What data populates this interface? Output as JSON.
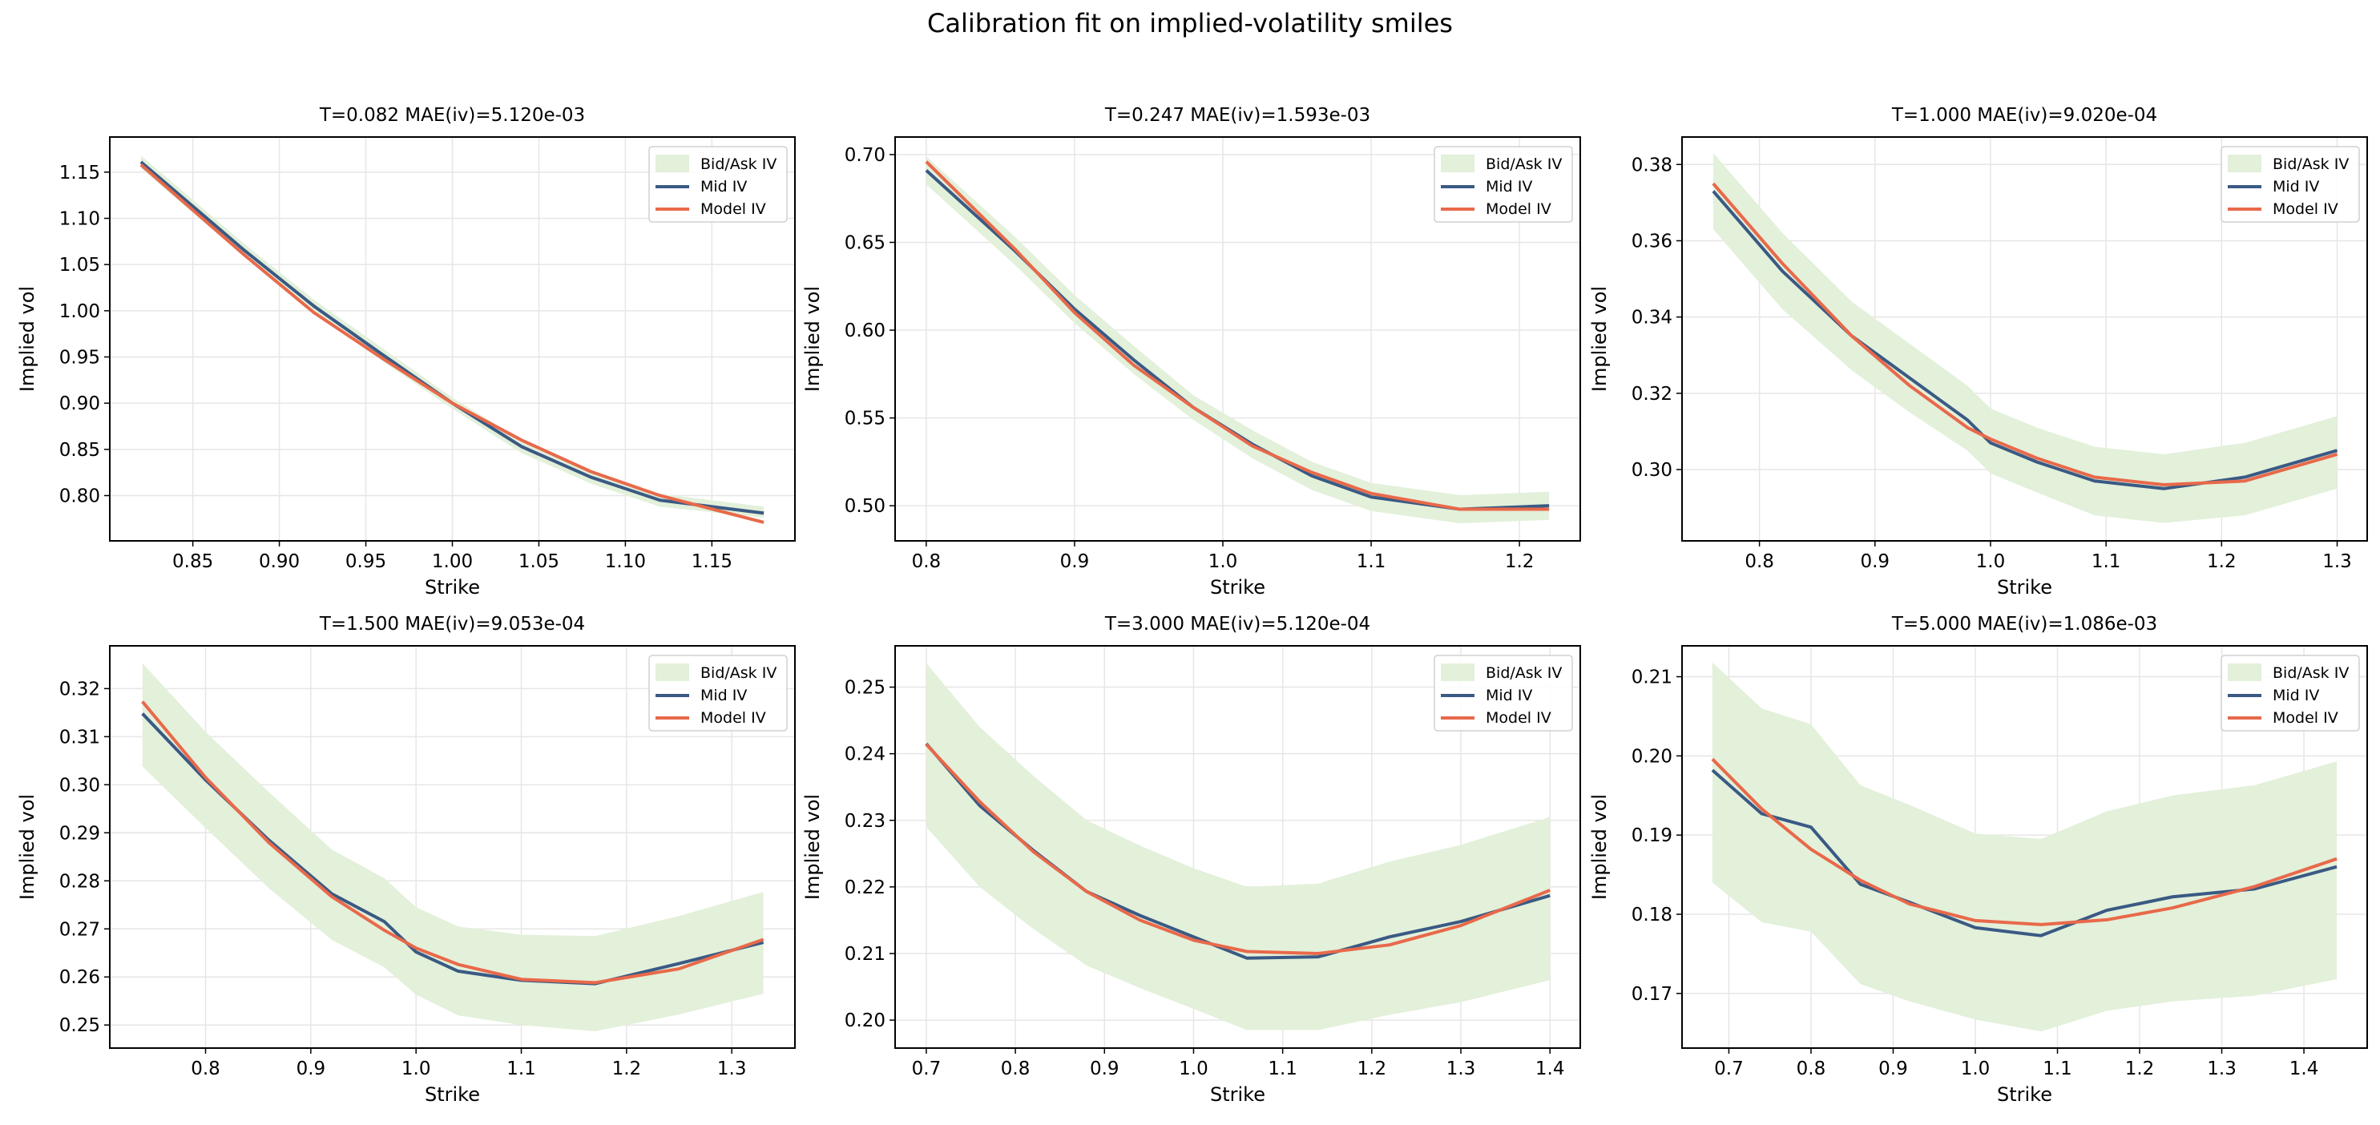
{
  "figure": {
    "suptitle": "Calibration fit on implied-volatility smiles"
  },
  "colors": {
    "bid_ask": "#e3f0da",
    "mid": "#3a5a84",
    "model": "#e8694a",
    "grid": "#e6e6e6"
  },
  "chart_data": [
    {
      "type": "line",
      "title": "T=0.082  MAE(iv)=5.120e-03",
      "xlabel": "Strike",
      "ylabel": "Implied vol",
      "xlim": [
        0.802,
        1.198
      ],
      "ylim": [
        0.751,
        1.188
      ],
      "grid": true,
      "legend": "upper-right",
      "xticks": [
        "0.85",
        "0.90",
        "0.95",
        "1.00",
        "1.05",
        "1.10",
        "1.15"
      ],
      "yticks": [
        "0.80",
        "0.85",
        "0.90",
        "0.95",
        "1.00",
        "1.05",
        "1.10",
        "1.15"
      ],
      "x": [
        0.82,
        0.88,
        0.92,
        0.96,
        1.0,
        1.04,
        1.08,
        1.12,
        1.18
      ],
      "series": [
        {
          "name": "Bid/Ask IV",
          "lower": [
            1.154,
            1.058,
            0.998,
            0.945,
            0.894,
            0.846,
            0.813,
            0.788,
            0.776
          ],
          "upper": [
            1.168,
            1.072,
            1.012,
            0.959,
            0.906,
            0.86,
            0.827,
            0.802,
            0.788
          ]
        },
        {
          "name": "Mid IV",
          "values": [
            1.161,
            1.065,
            1.005,
            0.952,
            0.9,
            0.853,
            0.82,
            0.795,
            0.781
          ]
        },
        {
          "name": "Model IV",
          "values": [
            1.158,
            1.06,
            0.998,
            0.948,
            0.9,
            0.86,
            0.826,
            0.8,
            0.771
          ]
        }
      ]
    },
    {
      "type": "line",
      "title": "T=0.247  MAE(iv)=1.593e-03",
      "xlabel": "Strike",
      "ylabel": "Implied vol",
      "xlim": [
        0.779,
        1.241
      ],
      "ylim": [
        0.48,
        0.71
      ],
      "grid": true,
      "legend": "upper-right",
      "xticks": [
        "0.8",
        "0.9",
        "1.0",
        "1.1",
        "1.2"
      ],
      "yticks": [
        "0.50",
        "0.55",
        "0.60",
        "0.65",
        "0.70"
      ],
      "x": [
        0.8,
        0.86,
        0.9,
        0.94,
        0.98,
        1.02,
        1.06,
        1.1,
        1.16,
        1.22
      ],
      "series": [
        {
          "name": "Bid/Ask IV",
          "lower": [
            0.683,
            0.637,
            0.604,
            0.575,
            0.549,
            0.527,
            0.509,
            0.497,
            0.49,
            0.492
          ],
          "upper": [
            0.699,
            0.653,
            0.62,
            0.591,
            0.563,
            0.543,
            0.525,
            0.513,
            0.506,
            0.508
          ]
        },
        {
          "name": "Mid IV",
          "values": [
            0.691,
            0.645,
            0.612,
            0.583,
            0.556,
            0.535,
            0.517,
            0.505,
            0.498,
            0.5
          ]
        },
        {
          "name": "Model IV",
          "values": [
            0.696,
            0.646,
            0.61,
            0.58,
            0.556,
            0.534,
            0.519,
            0.507,
            0.498,
            0.498
          ]
        }
      ]
    },
    {
      "type": "line",
      "title": "T=1.000  MAE(iv)=9.020e-04",
      "xlabel": "Strike",
      "ylabel": "Implied vol",
      "xlim": [
        0.733,
        1.326
      ],
      "ylim": [
        0.2813,
        0.3872
      ],
      "grid": true,
      "legend": "upper-right",
      "xticks": [
        "0.8",
        "0.9",
        "1.0",
        "1.1",
        "1.2",
        "1.3"
      ],
      "yticks": [
        "0.30",
        "0.32",
        "0.34",
        "0.36",
        "0.38"
      ],
      "x": [
        0.76,
        0.82,
        0.88,
        0.93,
        0.98,
        1.0,
        1.04,
        1.09,
        1.15,
        1.22,
        1.3
      ],
      "series": [
        {
          "name": "Bid/Ask IV",
          "lower": [
            0.363,
            0.342,
            0.326,
            0.315,
            0.305,
            0.299,
            0.294,
            0.288,
            0.286,
            0.288,
            0.295
          ],
          "upper": [
            0.383,
            0.362,
            0.344,
            0.333,
            0.322,
            0.316,
            0.311,
            0.306,
            0.304,
            0.307,
            0.314
          ]
        },
        {
          "name": "Mid IV",
          "values": [
            0.373,
            0.352,
            0.335,
            0.324,
            0.313,
            0.307,
            0.302,
            0.297,
            0.295,
            0.298,
            0.305
          ]
        },
        {
          "name": "Model IV",
          "values": [
            0.375,
            0.354,
            0.335,
            0.322,
            0.311,
            0.308,
            0.303,
            0.298,
            0.296,
            0.297,
            0.304
          ]
        }
      ]
    },
    {
      "type": "line",
      "title": "T=1.500  MAE(iv)=9.053e-04",
      "xlabel": "Strike",
      "ylabel": "Implied vol",
      "xlim": [
        0.709,
        1.36
      ],
      "ylim": [
        0.2452,
        0.3289
      ],
      "grid": true,
      "legend": "upper-right",
      "xticks": [
        "0.8",
        "0.9",
        "1.0",
        "1.1",
        "1.2",
        "1.3"
      ],
      "yticks": [
        "0.25",
        "0.26",
        "0.27",
        "0.28",
        "0.29",
        "0.30",
        "0.31",
        "0.32"
      ],
      "x": [
        0.74,
        0.8,
        0.86,
        0.92,
        0.97,
        1.0,
        1.04,
        1.1,
        1.17,
        1.25,
        1.33
      ],
      "series": [
        {
          "name": "Bid/Ask IV",
          "lower": [
            0.3038,
            0.291,
            0.2785,
            0.2677,
            0.262,
            0.2563,
            0.252,
            0.25,
            0.2487,
            0.2522,
            0.2565
          ],
          "upper": [
            0.3253,
            0.311,
            0.2985,
            0.2865,
            0.2805,
            0.2745,
            0.2705,
            0.2688,
            0.2685,
            0.2727,
            0.2777
          ]
        },
        {
          "name": "Mid IV",
          "values": [
            0.3148,
            0.301,
            0.2885,
            0.2773,
            0.2715,
            0.2652,
            0.2612,
            0.2593,
            0.2586,
            0.2628,
            0.2672
          ]
        },
        {
          "name": "Model IV",
          "values": [
            0.3173,
            0.3015,
            0.288,
            0.2767,
            0.2697,
            0.266,
            0.2626,
            0.2595,
            0.2588,
            0.2617,
            0.2678
          ]
        }
      ]
    },
    {
      "type": "line",
      "title": "T=3.000  MAE(iv)=5.120e-04",
      "xlabel": "Strike",
      "ylabel": "Implied vol",
      "xlim": [
        0.665,
        1.434
      ],
      "ylim": [
        0.1958,
        0.2562
      ],
      "grid": true,
      "legend": "upper-right",
      "xticks": [
        "0.7",
        "0.8",
        "0.9",
        "1.0",
        "1.1",
        "1.2",
        "1.3",
        "1.4"
      ],
      "yticks": [
        "0.20",
        "0.21",
        "0.22",
        "0.23",
        "0.24",
        "0.25"
      ],
      "x": [
        0.7,
        0.76,
        0.82,
        0.88,
        0.94,
        1.0,
        1.06,
        1.14,
        1.22,
        1.3,
        1.4
      ],
      "series": [
        {
          "name": "Bid/Ask IV",
          "lower": [
            0.229,
            0.22,
            0.2137,
            0.2082,
            0.2048,
            0.2017,
            0.1985,
            0.1985,
            0.2008,
            0.2027,
            0.206
          ],
          "upper": [
            0.2536,
            0.244,
            0.2367,
            0.23,
            0.2262,
            0.2228,
            0.22,
            0.2205,
            0.2238,
            0.2263,
            0.2305
          ]
        },
        {
          "name": "Mid IV",
          "values": [
            0.2415,
            0.2322,
            0.2255,
            0.2193,
            0.2157,
            0.2125,
            0.2093,
            0.2095,
            0.2125,
            0.2148,
            0.2187
          ]
        },
        {
          "name": "Model IV",
          "values": [
            0.2414,
            0.2328,
            0.2253,
            0.2193,
            0.215,
            0.212,
            0.2103,
            0.21,
            0.2113,
            0.2142,
            0.2195
          ]
        }
      ]
    },
    {
      "type": "line",
      "title": "T=5.000  MAE(iv)=1.086e-03",
      "xlabel": "Strike",
      "ylabel": "Implied vol",
      "xlim": [
        0.643,
        1.477
      ],
      "ylim": [
        0.1631,
        0.2139
      ],
      "grid": true,
      "legend": "upper-right",
      "xticks": [
        "0.7",
        "0.8",
        "0.9",
        "1.0",
        "1.1",
        "1.2",
        "1.3",
        "1.4"
      ],
      "yticks": [
        "0.17",
        "0.18",
        "0.19",
        "0.20",
        "0.21"
      ],
      "x": [
        0.68,
        0.74,
        0.8,
        0.86,
        0.92,
        1.0,
        1.08,
        1.16,
        1.24,
        1.34,
        1.44
      ],
      "series": [
        {
          "name": "Bid/Ask IV",
          "lower": [
            0.184,
            0.179,
            0.1778,
            0.1712,
            0.169,
            0.1667,
            0.1652,
            0.1678,
            0.169,
            0.1697,
            0.1718
          ],
          "upper": [
            0.2118,
            0.206,
            0.204,
            0.1963,
            0.1938,
            0.1902,
            0.1895,
            0.193,
            0.195,
            0.1963,
            0.1993
          ]
        },
        {
          "name": "Mid IV",
          "values": [
            0.1982,
            0.1927,
            0.191,
            0.1838,
            0.1815,
            0.1783,
            0.1773,
            0.1805,
            0.1822,
            0.1832,
            0.186
          ]
        },
        {
          "name": "Model IV",
          "values": [
            0.1996,
            0.1933,
            0.1882,
            0.1843,
            0.1813,
            0.1792,
            0.1787,
            0.1793,
            0.1808,
            0.1835,
            0.187
          ]
        }
      ]
    }
  ]
}
